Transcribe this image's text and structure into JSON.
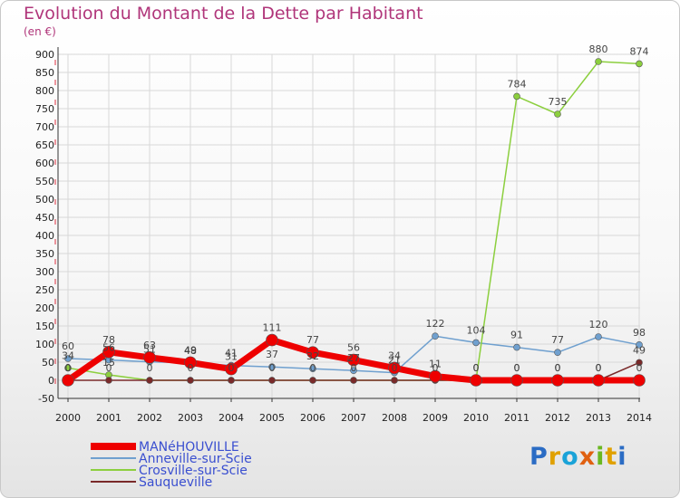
{
  "header": {
    "title": "Evolution du Montant de la Dette par Habitant",
    "unit": "(en €)"
  },
  "logo": {
    "text": "Proxiti"
  },
  "colors": {
    "title": "#b0357a",
    "grid": "#d8d8d8",
    "axis": "#333333"
  },
  "chart_data": {
    "type": "line",
    "title": "Evolution du Montant de la Dette par Habitant",
    "ylabel": "(en €)",
    "xlabel": "",
    "ylim": [
      -50,
      900
    ],
    "yticks": [
      -50,
      0,
      50,
      100,
      150,
      200,
      250,
      300,
      350,
      400,
      450,
      500,
      550,
      600,
      650,
      700,
      750,
      800,
      850,
      900
    ],
    "x": [
      "2000",
      "2001",
      "2002",
      "2003",
      "2004",
      "2005",
      "2006",
      "2007",
      "2008",
      "2009",
      "2010",
      "2011",
      "2012",
      "2013",
      "2014"
    ],
    "grid": true,
    "legend_position": "bottom-left",
    "series": [
      {
        "name": "Anneville-sur-Scie",
        "color": "#6fa0cf",
        "values": [
          60,
          56,
          51,
          48,
          41,
          37,
          32,
          27,
          21,
          122,
          104,
          91,
          77,
          120,
          98
        ],
        "labels": [
          "60",
          "56",
          "51",
          "48",
          "41",
          "37",
          "32",
          "27",
          "21",
          "122",
          "104",
          "91",
          "77",
          "120",
          "98"
        ],
        "width": 1.5,
        "marker": 3.5
      },
      {
        "name": "Crosville-sur-Scie",
        "color": "#8ccf3e",
        "values": [
          34,
          15,
          0,
          0,
          0,
          0,
          0,
          0,
          0,
          0,
          0,
          784,
          735,
          880,
          874
        ],
        "labels": [
          "34",
          "15",
          "",
          "",
          "",
          "",
          "",
          "",
          "",
          "",
          "",
          "784",
          "735",
          "880",
          "874"
        ],
        "width": 1.5,
        "marker": 3.5
      },
      {
        "name": "Sauqueville",
        "color": "#7a2a2a",
        "values": [
          0,
          0,
          0,
          0,
          0,
          0,
          0,
          0,
          0,
          0,
          0,
          0,
          0,
          0,
          49
        ],
        "labels": [
          "0",
          "0",
          "0",
          "0",
          "0",
          "0",
          "0",
          "0",
          "0",
          "0",
          "0",
          "0",
          "0",
          "0",
          "49"
        ],
        "width": 1.5,
        "marker": 3.5
      },
      {
        "name": "MANéHOUVILLE",
        "color": "#ee0000",
        "values": [
          0,
          78,
          63,
          49,
          31,
          111,
          77,
          56,
          34,
          11,
          0,
          0,
          0,
          0,
          0
        ],
        "labels": [
          "0",
          "78",
          "63",
          "49",
          "31",
          "111",
          "77",
          "56",
          "34",
          "11",
          "0",
          "0",
          "0",
          "0",
          "0"
        ],
        "width": 7,
        "marker": 6.5
      }
    ],
    "legend_order": [
      "MANéHOUVILLE",
      "Anneville-sur-Scie",
      "Crosville-sur-Scie",
      "Sauqueville"
    ]
  }
}
